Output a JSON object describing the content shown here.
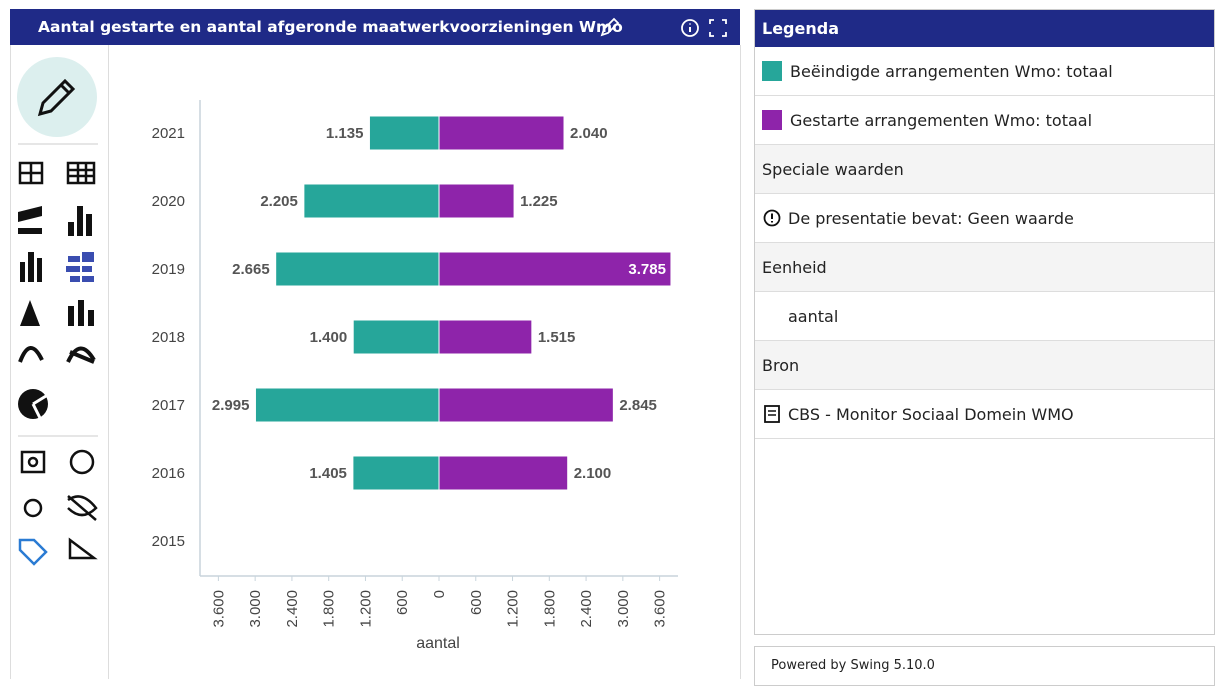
{
  "header": {
    "title": "Aantal gestarte en aantal afgeronde maatwerkvoorzieningen Wmo"
  },
  "chart_data": {
    "type": "bar",
    "orientation": "diverging",
    "categories": [
      "2021",
      "2020",
      "2019",
      "2018",
      "2017",
      "2016",
      "2015"
    ],
    "series": [
      {
        "name": "Beëindigde arrangementen Wmo: totaal",
        "color": "#26a69a",
        "side": "left",
        "values": [
          1135,
          2205,
          2665,
          1400,
          2995,
          1405,
          null
        ],
        "value_labels": [
          "1.135",
          "2.205",
          "2.665",
          "1.400",
          "2.995",
          "1.405",
          null
        ]
      },
      {
        "name": "Gestarte arrangementen Wmo: totaal",
        "color": "#8e24aa",
        "side": "right",
        "values": [
          2040,
          1225,
          3785,
          1515,
          2845,
          2100,
          null
        ],
        "value_labels": [
          "2.040",
          "1.225",
          "3.785",
          "1.515",
          "2.845",
          "2.100",
          null
        ]
      }
    ],
    "xlabel": "aantal",
    "xlim": [
      -3900,
      3900
    ],
    "xticks": [
      {
        "value": -3600,
        "label": "3.600"
      },
      {
        "value": -3000,
        "label": "3.000"
      },
      {
        "value": -2400,
        "label": "2.400"
      },
      {
        "value": -1800,
        "label": "1.800"
      },
      {
        "value": -1200,
        "label": "1.200"
      },
      {
        "value": -600,
        "label": "600"
      },
      0,
      600,
      {
        "value": 1200,
        "label": "1.200"
      },
      {
        "value": 1800,
        "label": "1.800"
      },
      {
        "value": 2400,
        "label": "2.400"
      },
      {
        "value": 3000,
        "label": "3.000"
      },
      {
        "value": 3600,
        "label": "3.600"
      }
    ],
    "grid": false
  },
  "legend_panel": {
    "title": "Legenda",
    "special_title": "Speciale waarden",
    "special_note": "De presentatie bevat: Geen waarde",
    "unit_title": "Eenheid",
    "unit": "aantal",
    "source_title": "Bron",
    "source": "CBS - Monitor Sociaal Domein WMO"
  },
  "footer": "Powered by Swing 5.10.0"
}
